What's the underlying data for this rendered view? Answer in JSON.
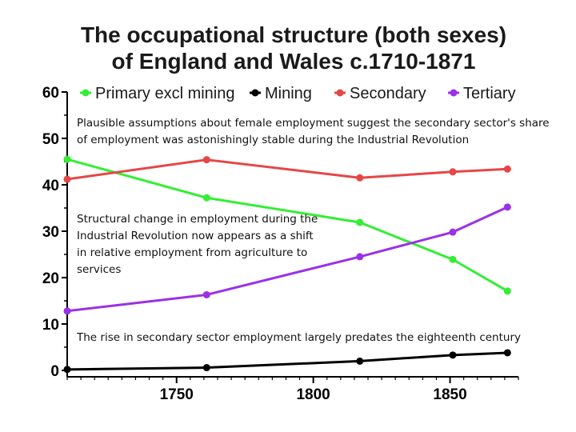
{
  "chart_data": {
    "type": "line",
    "title_lines": [
      "The occupational structure (both sexes)",
      "of England and Wales c.1710-1871"
    ],
    "xlabel": "",
    "ylabel": "",
    "xlim": [
      1710,
      1875
    ],
    "ylim": [
      0,
      60
    ],
    "x_ticks": [
      1750,
      1800,
      1850
    ],
    "y_ticks": [
      0,
      10,
      20,
      30,
      40,
      50,
      60
    ],
    "legend_position": "top",
    "series": [
      {
        "name": "Primary excl mining",
        "color": "#33ee33",
        "x": [
          1710,
          1761,
          1817,
          1851,
          1871
        ],
        "values": [
          45.5,
          37.2,
          31.9,
          23.9,
          17.1
        ]
      },
      {
        "name": "Mining",
        "color": "#000000",
        "x": [
          1710,
          1761,
          1817,
          1851,
          1871
        ],
        "values": [
          0.2,
          0.6,
          2.0,
          3.3,
          3.8
        ]
      },
      {
        "name": "Secondary",
        "color": "#e64646",
        "x": [
          1710,
          1761,
          1817,
          1851,
          1871
        ],
        "values": [
          41.2,
          45.4,
          41.5,
          42.8,
          43.4
        ]
      },
      {
        "name": "Tertiary",
        "color": "#9b30e8",
        "x": [
          1710,
          1761,
          1817,
          1851,
          1871
        ],
        "values": [
          12.8,
          16.3,
          24.5,
          29.8,
          35.2
        ]
      }
    ]
  },
  "annotations": [
    "Plausible assumptions about female employment suggest the secondary sector's share of employment was astonishingly stable during the Industrial Revolution",
    "Structural change in employment during the Industrial Revolution now appears as a shift in relative employment from agriculture to services",
    "The rise in secondary sector employment largely predates the eighteenth century"
  ]
}
